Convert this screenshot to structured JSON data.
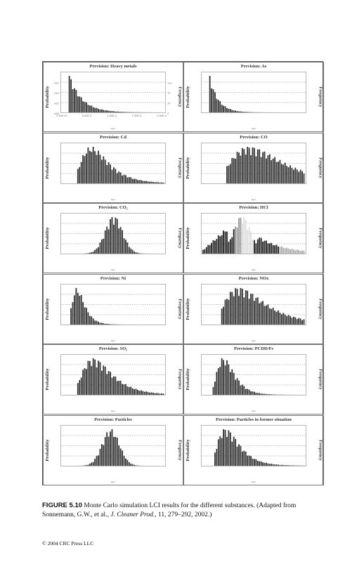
{
  "figure": {
    "panels": [
      {
        "title": "Prevision: Heavy metals",
        "ylabel": "Probability",
        "flabel": "Frequency",
        "xunit": "kg/t",
        "left_ticks": [
          "",
          ".022",
          ".015",
          ".007",
          ".000"
        ],
        "right_ticks": [
          "",
          "112",
          "75",
          "37",
          "0"
        ],
        "x_ticks": [
          "0.00E+0",
          "5.00E-5",
          "1.00E-4",
          "1.50E-4",
          "2.00E-4"
        ],
        "distribution": "spike-decay",
        "peak": 0.14,
        "tail": 8
      },
      {
        "title": "Prevision: As",
        "ylabel": "Probability",
        "flabel": "Frequency",
        "xunit": "kg/t",
        "left_ticks": [
          "",
          "",
          "",
          "",
          ""
        ],
        "right_ticks": [
          "",
          "",
          "",
          "",
          ""
        ],
        "x_ticks": [
          "",
          "",
          "",
          "",
          ""
        ],
        "distribution": "spike-decay",
        "peak": 0.07,
        "tail": 12
      },
      {
        "title": "Prevision: Cd",
        "ylabel": "Probability",
        "flabel": "Frequency",
        "xunit": "kg/t",
        "left_ticks": [
          "",
          "",
          "",
          "",
          ""
        ],
        "right_ticks": [
          "",
          "",
          "",
          "",
          ""
        ],
        "x_ticks": [
          "",
          "",
          "",
          "",
          ""
        ],
        "distribution": "skewed",
        "peak": 0.28,
        "tail": 4
      },
      {
        "title": "Prevision: CO",
        "ylabel": "Probability",
        "flabel": "Frequency",
        "xunit": "kg/t",
        "left_ticks": [
          "",
          "",
          "",
          "",
          ""
        ],
        "right_ticks": [
          "",
          "",
          "",
          "",
          ""
        ],
        "x_ticks": [
          "",
          "",
          "",
          "",
          ""
        ],
        "distribution": "skewed",
        "peak": 0.45,
        "tail": 3
      },
      {
        "title": "Prevision: CO₂",
        "ylabel": "Probability",
        "flabel": "Frequency",
        "xunit": "kg/t",
        "left_ticks": [
          "",
          "",
          "",
          "",
          ""
        ],
        "right_ticks": [
          "",
          "",
          "",
          "",
          ""
        ],
        "x_ticks": [
          "",
          "",
          "",
          "",
          ""
        ],
        "distribution": "normal",
        "peak": 0.5,
        "tail": 3
      },
      {
        "title": "Prevision: HCl",
        "ylabel": "Probability",
        "flabel": "Frequency",
        "xunit": "kg/t",
        "left_ticks": [
          "",
          "",
          "",
          "",
          ""
        ],
        "right_ticks": [
          "",
          "",
          "",
          "",
          ""
        ],
        "x_ticks": [
          "",
          "",
          "",
          "",
          ""
        ],
        "distribution": "hcl",
        "peak": 0.3,
        "tail": 3
      },
      {
        "title": "Prevision: Ni",
        "ylabel": "Probability",
        "flabel": "Frequency",
        "xunit": "kg/t",
        "left_ticks": [
          "",
          "",
          "",
          "",
          ""
        ],
        "right_ticks": [
          "",
          "",
          "",
          "",
          ""
        ],
        "x_ticks": [
          "",
          "",
          "",
          "",
          ""
        ],
        "distribution": "skewed",
        "peak": 0.14,
        "tail": 5
      },
      {
        "title": "Prevision: NOx",
        "ylabel": "Probability",
        "flabel": "Frequency",
        "xunit": "kg/t",
        "left_ticks": [
          "",
          "",
          "",
          "",
          ""
        ],
        "right_ticks": [
          "",
          "",
          "",
          "",
          ""
        ],
        "x_ticks": [
          "",
          "",
          "",
          "",
          ""
        ],
        "distribution": "skewed",
        "peak": 0.35,
        "tail": 3
      },
      {
        "title": "Prevision: SO₂",
        "ylabel": "Probability",
        "flabel": "Frequency",
        "xunit": "kg/t",
        "left_ticks": [
          "",
          "",
          "",
          "",
          ""
        ],
        "right_ticks": [
          "",
          "",
          "",
          "",
          ""
        ],
        "x_ticks": [
          "",
          "",
          "",
          "",
          ""
        ],
        "distribution": "skewed",
        "peak": 0.3,
        "tail": 4
      },
      {
        "title": "Prevision: PCDD/Fs",
        "ylabel": "Probability",
        "flabel": "Frequency",
        "xunit": "kg/t",
        "left_ticks": [
          "",
          "",
          "",
          "",
          ""
        ],
        "right_ticks": [
          "",
          "",
          "",
          "",
          ""
        ],
        "x_ticks": [
          "",
          "",
          "",
          "",
          ""
        ],
        "distribution": "skewed",
        "peak": 0.2,
        "tail": 5
      },
      {
        "title": "Prevision: Particles",
        "ylabel": "Probability",
        "flabel": "Frequency",
        "xunit": "kg/t",
        "left_ticks": [
          "",
          "",
          "",
          "",
          ""
        ],
        "right_ticks": [
          "",
          "",
          "",
          "",
          ""
        ],
        "x_ticks": [
          "",
          "",
          "",
          "",
          ""
        ],
        "distribution": "normal",
        "peak": 0.47,
        "tail": 3
      },
      {
        "title": "Prevision: Particles in former situation",
        "ylabel": "Probability",
        "flabel": "Frequency",
        "xunit": "kg/t",
        "left_ticks": [
          "",
          "",
          "",
          "",
          ""
        ],
        "right_ticks": [
          "",
          "",
          "",
          "",
          ""
        ],
        "x_ticks": [
          "",
          "",
          "",
          "",
          ""
        ],
        "distribution": "skewed",
        "peak": 0.22,
        "tail": 4
      }
    ]
  },
  "caption": {
    "label": "FIGURE 5.10",
    "text": " Monte Carlo simulation LCI results for the different substances. (Adapted from Sonnemann, G.W., et al., ",
    "journal": "J. Cleaner Prod.",
    "text2": ", 11, 279–292, 2002.)"
  },
  "footer": "© 2004 CRC Press LLC"
}
